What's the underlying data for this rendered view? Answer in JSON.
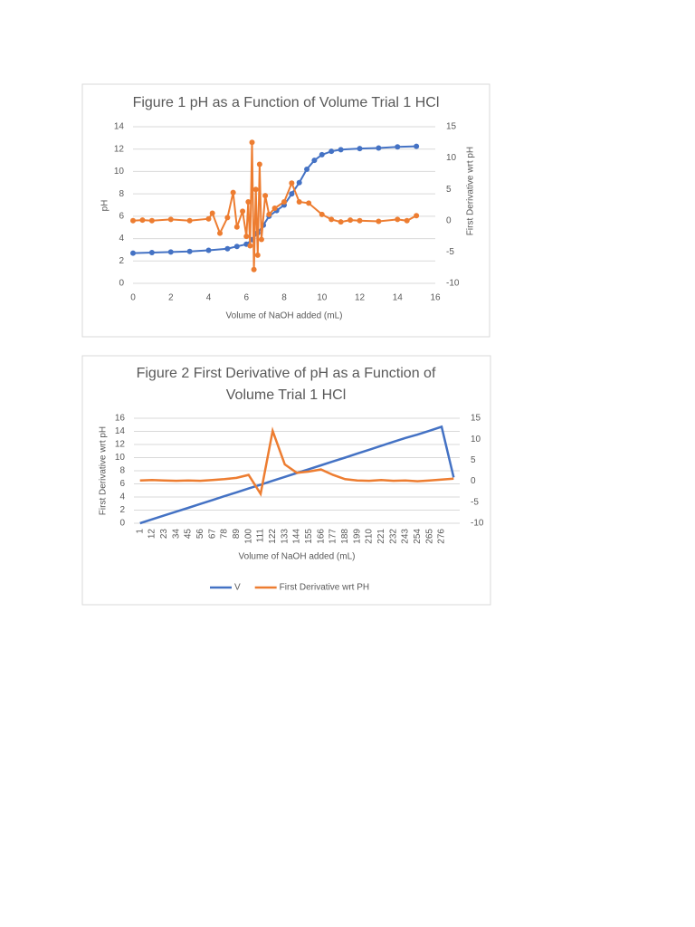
{
  "chart_data": [
    {
      "type": "scatter",
      "title": "Figure 1 pH as a Function of Volume Trial 1 HCl",
      "x_label": "Volume of NaOH added (mL)",
      "y_label": "pH",
      "y2_label": "First Derivative wrt pH",
      "xlim": [
        0,
        16
      ],
      "xticks": [
        0,
        2,
        4,
        6,
        8,
        10,
        12,
        14,
        16
      ],
      "ylim": [
        0,
        14
      ],
      "yticks": [
        0,
        2,
        4,
        6,
        8,
        10,
        12,
        14
      ],
      "y2lim": [
        -10,
        15
      ],
      "y2ticks": [
        -10,
        -5,
        0,
        5,
        10,
        15
      ],
      "grid": true,
      "series": [
        {
          "color": "#4472c4",
          "x": [
            0,
            1,
            2,
            3,
            4,
            5,
            5.5,
            6,
            6.3,
            6.6,
            6.9,
            7.2,
            7.6,
            8,
            8.4,
            8.8,
            9.2,
            9.6,
            10,
            10.5,
            11,
            12,
            13,
            14,
            15
          ],
          "values": [
            2.7,
            2.75,
            2.8,
            2.85,
            2.95,
            3.1,
            3.3,
            3.5,
            3.9,
            4.5,
            5.2,
            6.0,
            6.5,
            7.0,
            8.0,
            9.0,
            10.2,
            11.0,
            11.5,
            11.8,
            11.95,
            12.05,
            12.1,
            12.2,
            12.25
          ]
        },
        {
          "color": "#ed7d31",
          "axis": "y2",
          "x": [
            0,
            0.5,
            1,
            2,
            3,
            4,
            4.2,
            4.6,
            5,
            5.3,
            5.5,
            5.8,
            6,
            6.1,
            6.2,
            6.3,
            6.4,
            6.5,
            6.6,
            6.7,
            6.8,
            7,
            7.2,
            7.5,
            8,
            8.4,
            8.8,
            9.3,
            10,
            10.5,
            11,
            11.5,
            12,
            13,
            14,
            14.5,
            15
          ],
          "values": [
            0,
            0.1,
            0,
            0.2,
            0,
            0.3,
            1.2,
            -2,
            0.5,
            4.5,
            -1,
            1.5,
            -2.5,
            3,
            -4,
            12.5,
            -7.8,
            5,
            -5.5,
            9,
            -3,
            4,
            1,
            2,
            3,
            6,
            3,
            2.8,
            1,
            0.2,
            -0.2,
            0.1,
            0,
            -0.1,
            0.2,
            0,
            0.8
          ]
        }
      ]
    },
    {
      "type": "line",
      "title": "Figure 2 First Derivative of pH as a Function of Volume Trial 1 HCl",
      "x_label": "Volume of NaOH added (mL)",
      "y_label": "First Derivative wrt pH",
      "categories": [
        "1",
        "12",
        "23",
        "34",
        "45",
        "56",
        "67",
        "78",
        "89",
        "100",
        "111",
        "122",
        "133",
        "144",
        "155",
        "166",
        "177",
        "188",
        "199",
        "210",
        "221",
        "232",
        "243",
        "254",
        "265",
        "276",
        null
      ],
      "ylim": [
        0,
        16
      ],
      "yticks": [
        0,
        2,
        4,
        6,
        8,
        10,
        12,
        14,
        16
      ],
      "y2lim": [
        -10,
        15
      ],
      "y2ticks": [
        -10,
        -5,
        0,
        5,
        10,
        15
      ],
      "grid": true,
      "series": [
        {
          "name": "V",
          "color": "#4472c4",
          "values": [
            0,
            0.59,
            1.18,
            1.77,
            2.35,
            2.94,
            3.53,
            4.12,
            4.71,
            5.3,
            5.88,
            6.47,
            7.06,
            7.65,
            8.24,
            8.83,
            9.42,
            10.0,
            10.6,
            11.2,
            11.8,
            12.4,
            13.0,
            13.5,
            14.1,
            14.7,
            7
          ]
        },
        {
          "name": "First Derivative wrt PH",
          "color": "#ed7d31",
          "axis": "y2",
          "values": [
            0.2,
            0.3,
            0.2,
            0.1,
            0.2,
            0.1,
            0.3,
            0.5,
            0.8,
            1.5,
            -3,
            12,
            4,
            2,
            2.3,
            2.8,
            1.5,
            0.5,
            0.2,
            0.1,
            0.3,
            0.1,
            0.2,
            0,
            0.2,
            0.4,
            0.6
          ]
        }
      ]
    }
  ]
}
